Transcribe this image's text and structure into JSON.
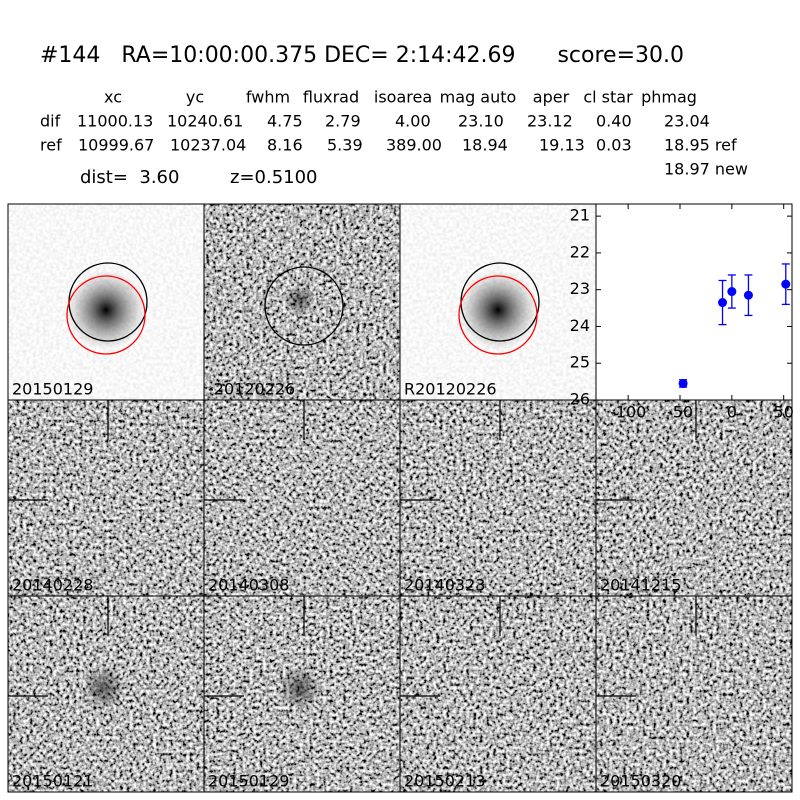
{
  "header": {
    "title": "#144   RA=10:00:00.375 DEC= 2:14:42.69      score=30.0",
    "columns": [
      "xc",
      "yc",
      "fwhm",
      "fluxrad",
      "isoarea",
      "mag auto",
      "aper",
      "cl star",
      "phmag"
    ],
    "rows": [
      {
        "label": "dif",
        "values": [
          "11000.13",
          "10240.61",
          "4.75",
          "2.79",
          "4.00",
          "23.10",
          "23.12",
          "0.40",
          "23.04"
        ]
      },
      {
        "label": "ref",
        "values": [
          "10999.67",
          "10237.04",
          "8.16",
          "5.39",
          "389.00",
          "18.94",
          "19.13",
          "0.03",
          "18.95 ref"
        ]
      }
    ],
    "extra": "18.97 new",
    "dist": "dist=  3.60",
    "z": "z=0.5100"
  },
  "panels": [
    {
      "label": "20150129",
      "color": "#000000"
    },
    {
      "label": "-20120226",
      "color": "#000000"
    },
    {
      "label": "R20120226",
      "color": "#000000"
    },
    {
      "label": "20140228",
      "color": "#000000"
    },
    {
      "label": "20140308",
      "color": "#000000"
    },
    {
      "label": "20140323",
      "color": "#000000"
    },
    {
      "label": "20141215",
      "color": "#000000"
    },
    {
      "label": "20150121",
      "color": "#000000"
    },
    {
      "label": "20150129",
      "color": "#ff0000"
    },
    {
      "label": "20150213",
      "color": "#000000"
    },
    {
      "label": "20150320",
      "color": "#000000"
    }
  ],
  "chart_data": {
    "type": "scatter",
    "xlim": [
      -131,
      58
    ],
    "xticks": [
      -100,
      -50,
      0,
      50
    ],
    "ylim": [
      26,
      20.67
    ],
    "yticks": [
      21,
      22,
      23,
      24,
      25,
      26
    ],
    "series": [
      {
        "color": "#0000ff",
        "x": [
          -47,
          -9,
          0,
          16,
          52
        ],
        "values": [
          25.55,
          23.35,
          23.05,
          23.15,
          22.85
        ],
        "errors": [
          0.1,
          0.6,
          0.45,
          0.55,
          0.55
        ]
      }
    ]
  }
}
